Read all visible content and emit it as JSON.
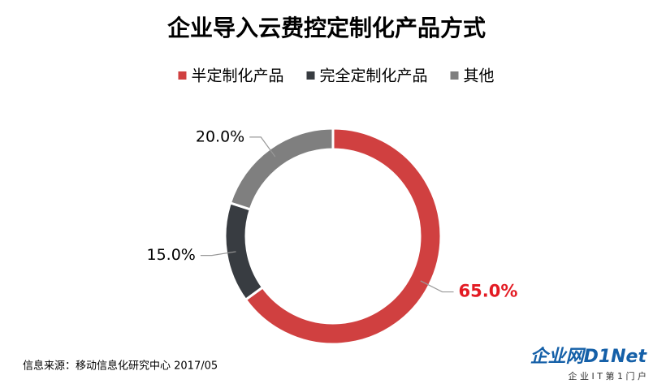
{
  "chart_data": {
    "type": "donut",
    "title": "企业导入云费控定制化产品方式",
    "categories": [
      "半定制化产品",
      "完全定制化产品",
      "其他"
    ],
    "values": [
      65.0,
      15.0,
      20.0
    ],
    "value_labels": [
      "65.0%",
      "15.0%",
      "20.0%"
    ],
    "colors": [
      "#d04040",
      "#383c41",
      "#7f7f7f"
    ],
    "legend": "top",
    "source": "信息来源：移动信息化研究中心 2017/05"
  },
  "logo": {
    "title": "企业网D1Net",
    "subtitle": "企 业 I T 第 1 门 户"
  }
}
